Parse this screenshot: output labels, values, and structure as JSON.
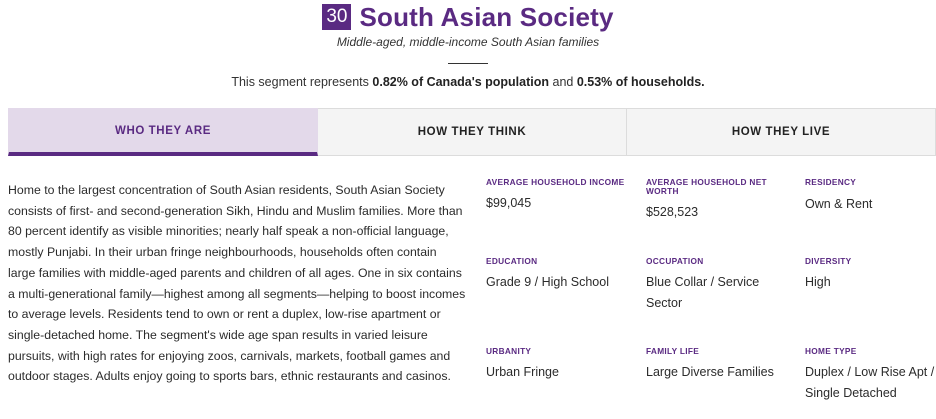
{
  "segment": {
    "number": "30",
    "title": "South Asian Society",
    "subtitle": "Middle-aged, middle-income South Asian families",
    "stat_prefix": "This segment represents ",
    "population_pct": "0.82% of Canada's population",
    "stat_middle": " and ",
    "households_pct": "0.53% of households."
  },
  "tabs": [
    {
      "label": "WHO THEY ARE",
      "active": true
    },
    {
      "label": "HOW THEY THINK",
      "active": false
    },
    {
      "label": "HOW THEY LIVE",
      "active": false
    }
  ],
  "description": "Home to the largest concentration of South Asian residents, South Asian Society consists of first- and second-generation Sikh, Hindu and Muslim families. More than 80 percent identify as visible minorities; nearly half speak a non-official language, mostly Punjabi. In their urban fringe neighbourhoods, households often contain large families with middle-aged parents and children of all ages. One in six contains a multi-generational family—highest among all segments—helping to boost incomes to average levels. Residents tend to own or rent a duplex, low-rise apartment or single-detached home. The segment's wide age span results in varied leisure pursuits, with high rates for enjoying zoos, carnivals, markets, football games and outdoor stages. Adults enjoy going to sports bars, ethnic restaurants and casinos.",
  "facts": {
    "avg_income": {
      "label": "AVERAGE HOUSEHOLD INCOME",
      "value": "$99,045"
    },
    "avg_net_worth": {
      "label": "AVERAGE HOUSEHOLD NET WORTH",
      "value": "$528,523"
    },
    "residency": {
      "label": "RESIDENCY",
      "value": "Own & Rent"
    },
    "education": {
      "label": "EDUCATION",
      "value": "Grade 9 / High School"
    },
    "occupation": {
      "label": "OCCUPATION",
      "value": "Blue Collar / Service Sector"
    },
    "diversity": {
      "label": "DIVERSITY",
      "value": "High"
    },
    "urbanity": {
      "label": "URBANITY",
      "value": "Urban Fringe"
    },
    "family_life": {
      "label": "FAMILY LIFE",
      "value": "Large Diverse Families"
    },
    "home_type": {
      "label": "HOME TYPE",
      "value": "Duplex / Low Rise Apt / Single Detached"
    }
  },
  "colors": {
    "accent": "#5a2a82",
    "tab_active_bg": "#e3d9ea",
    "tab_bg": "#f4f4f4"
  }
}
